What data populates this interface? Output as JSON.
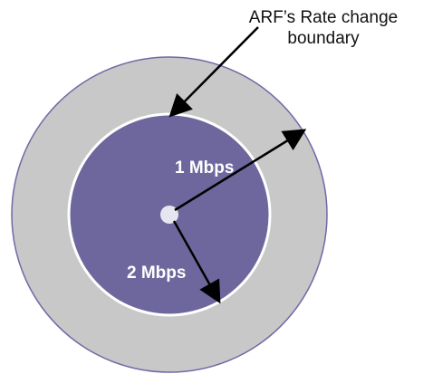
{
  "boundary_caption": {
    "line1": "ARF’s Rate change",
    "line2": "boundary"
  },
  "zones": {
    "inner_rate": "1 Mbps",
    "outer_rate": "2 Mbps"
  },
  "colors": {
    "outer_ring_fill": "#c8c8c8",
    "outer_ring_stroke": "#6f6aa6",
    "inner_disk_fill": "#6e679d",
    "inner_disk_stroke": "#ffffff",
    "center_dot": "#e6e6f0",
    "arrow": "#000000",
    "label_text": "#ffffff",
    "caption_text": "#111111"
  }
}
